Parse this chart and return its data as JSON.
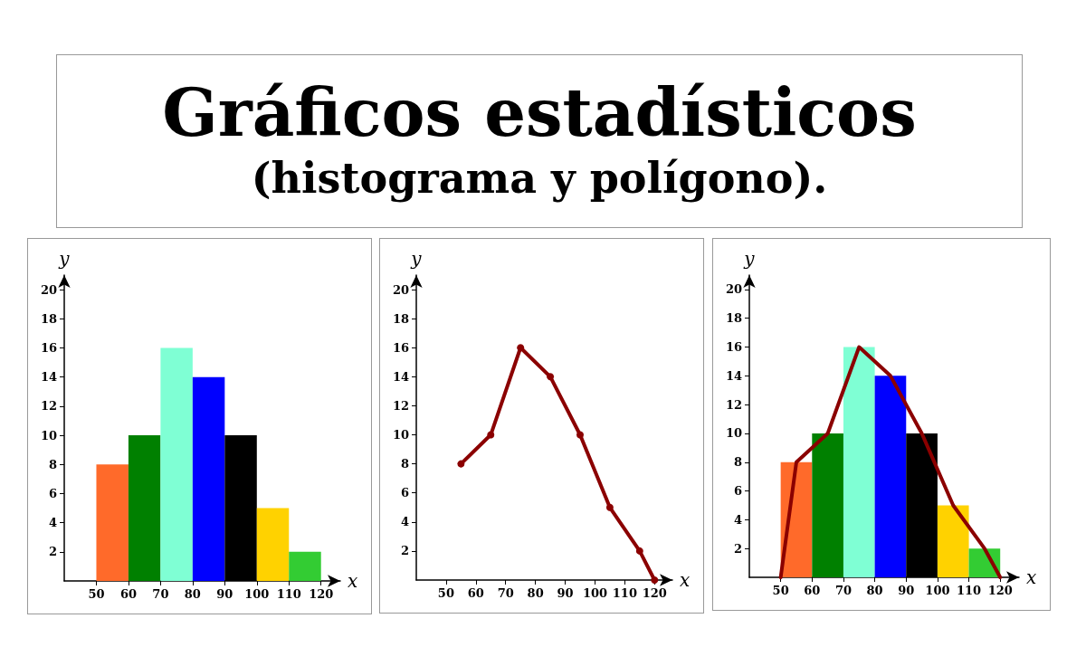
{
  "chart_data": [
    {
      "type": "other",
      "title": "Gráficos estadísticos",
      "subtitle": "(histograma y polígono)."
    },
    {
      "type": "histogram",
      "xlabel": "x",
      "ylabel": "y",
      "bins": [
        50,
        60,
        70,
        80,
        90,
        100,
        110,
        120
      ],
      "values": [
        8,
        10,
        16,
        14,
        10,
        5,
        2
      ],
      "colors": [
        "#ff6a2a",
        "#008000",
        "#7fffd4",
        "#0000ff",
        "#000000",
        "#ffd200",
        "#33cc33"
      ],
      "xlim": [
        40,
        126
      ],
      "ylim": [
        0,
        21
      ],
      "xticks": [
        50,
        60,
        70,
        80,
        90,
        100,
        110,
        120
      ],
      "yticks": [
        2,
        4,
        6,
        8,
        10,
        12,
        14,
        16,
        18,
        20
      ],
      "grid": false
    },
    {
      "type": "line",
      "xlabel": "x",
      "ylabel": "y",
      "x": [
        55,
        65,
        75,
        85,
        95,
        105,
        115,
        120
      ],
      "values": [
        8,
        10,
        16,
        14,
        10,
        5,
        2,
        0
      ],
      "color": "#8b0000",
      "marker": "circle",
      "line_style": "solid",
      "xlim": [
        40,
        126
      ],
      "ylim": [
        0,
        21
      ],
      "xticks": [
        50,
        60,
        70,
        80,
        90,
        100,
        110,
        120
      ],
      "yticks": [
        2,
        4,
        6,
        8,
        10,
        12,
        14,
        16,
        18,
        20
      ],
      "grid": false
    },
    {
      "type": "histogram",
      "xlabel": "x",
      "ylabel": "y",
      "bins": [
        50,
        60,
        70,
        80,
        90,
        100,
        110,
        120
      ],
      "values": [
        8,
        10,
        16,
        14,
        10,
        5,
        2
      ],
      "colors": [
        "#ff6a2a",
        "#008000",
        "#7fffd4",
        "#0000ff",
        "#000000",
        "#ffd200",
        "#33cc33"
      ],
      "xlim": [
        40,
        126
      ],
      "ylim": [
        0,
        21
      ],
      "xticks": [
        50,
        60,
        70,
        80,
        90,
        100,
        110,
        120
      ],
      "yticks": [
        2,
        4,
        6,
        8,
        10,
        12,
        14,
        16,
        18,
        20
      ],
      "grid": false,
      "series": [
        {
          "type": "line",
          "x": [
            50,
            55,
            65,
            75,
            85,
            95,
            105,
            115,
            120
          ],
          "values": [
            0,
            8,
            10,
            16,
            14,
            10,
            5,
            2,
            0
          ],
          "color": "#8b0000",
          "marker": "none",
          "line_style": "solid"
        }
      ]
    }
  ]
}
